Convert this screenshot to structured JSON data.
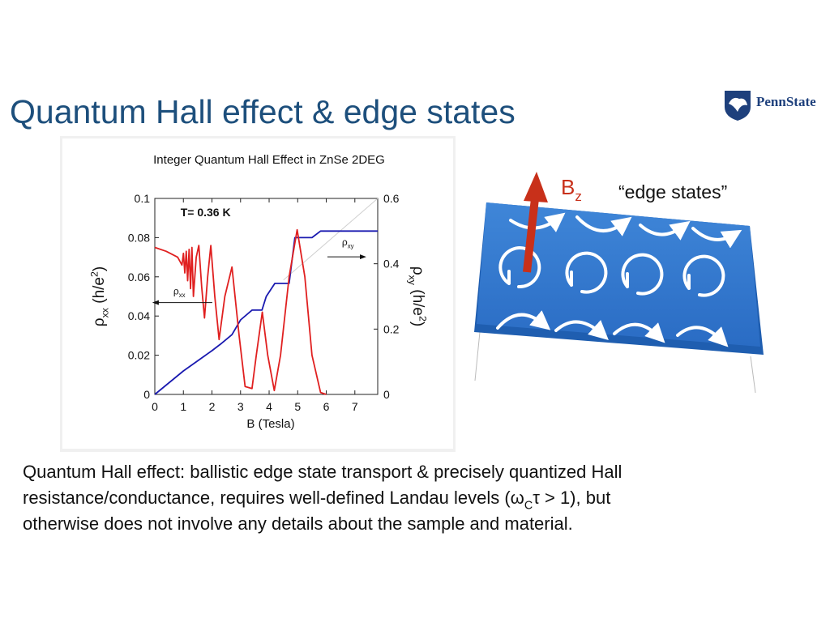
{
  "slide": {
    "title": "Quantum Hall effect & edge states",
    "logo": "PennState"
  },
  "chart_data": {
    "type": "line",
    "title": "Integer Quantum Hall Effect in ZnSe 2DEG",
    "xlabel": "B (Tesla)",
    "ylabel": [
      "ρ",
      "xx",
      " (h/e",
      "2",
      ")"
    ],
    "y2label": [
      "ρ",
      "xy",
      " (h/e",
      "2",
      ")"
    ],
    "annotations": [
      {
        "text": [
          "T= 0.36 K"
        ],
        "x": 0.9,
        "y": 0.091
      },
      {
        "text": [
          "ρ",
          "xx"
        ],
        "x": 0.65,
        "y": 0.051
      },
      {
        "text": [
          "ρ",
          "xy"
        ],
        "x": 6.55,
        "y": 0.076
      }
    ],
    "xlim": [
      0,
      7.8
    ],
    "xticks": [
      0,
      1,
      2,
      3,
      4,
      5,
      6,
      7
    ],
    "ylim": [
      0,
      0.1
    ],
    "yticks": [
      0,
      0.02,
      0.04,
      0.06,
      0.08,
      0.1
    ],
    "y2lim": [
      0,
      0.6
    ],
    "y2ticks": [
      0,
      0.2,
      0.4,
      0.6
    ],
    "series": [
      {
        "color": "#e02020",
        "x": [
          0,
          0.4,
          0.8,
          0.95,
          1.0,
          1.05,
          1.1,
          1.15,
          1.2,
          1.25,
          1.3,
          1.35,
          1.45,
          1.54,
          1.64,
          1.74,
          1.85,
          1.96,
          2.1,
          2.25,
          2.45,
          2.7,
          2.95,
          3.16,
          3.4,
          3.55,
          3.76,
          3.95,
          4.18,
          4.4,
          4.7,
          4.98,
          5.25,
          5.5,
          5.8,
          6.0
        ],
        "values": [
          0.075,
          0.073,
          0.07,
          0.066,
          0.072,
          0.062,
          0.073,
          0.058,
          0.074,
          0.054,
          0.075,
          0.05,
          0.07,
          0.076,
          0.055,
          0.039,
          0.06,
          0.076,
          0.05,
          0.028,
          0.05,
          0.065,
          0.03,
          0.004,
          0.003,
          0.02,
          0.042,
          0.02,
          0.002,
          0.02,
          0.06,
          0.084,
          0.06,
          0.02,
          0.001,
          0
        ]
      },
      {
        "color": "#1a1ab0",
        "axis": "y2",
        "x": [
          0,
          1,
          2,
          2.3,
          2.7,
          3.0,
          3.4,
          3.75,
          3.9,
          4.2,
          4.7,
          4.9,
          5.5,
          5.8,
          7.8
        ],
        "values": [
          0,
          0.072,
          0.134,
          0.154,
          0.183,
          0.228,
          0.258,
          0.258,
          0.3,
          0.34,
          0.34,
          0.48,
          0.48,
          0.5,
          0.5
        ]
      },
      {
        "color": "#d0d0d0",
        "axis": "y2",
        "x": [
          4.5,
          7.8
        ],
        "values": [
          0.35,
          0.6
        ]
      }
    ]
  },
  "diagram": {
    "field_label": [
      "B",
      "z"
    ],
    "caption": "“edge states”"
  },
  "body": {
    "lines": [
      [
        "Quantum Hall effect: ballistic edge state transport & precisely quantized Hall"
      ],
      [
        "resistance/conductance, requires well-defined Landau levels (ω",
        "C",
        "τ > 1), but"
      ],
      [
        "otherwise does not involve any details about the sample and material."
      ]
    ]
  }
}
